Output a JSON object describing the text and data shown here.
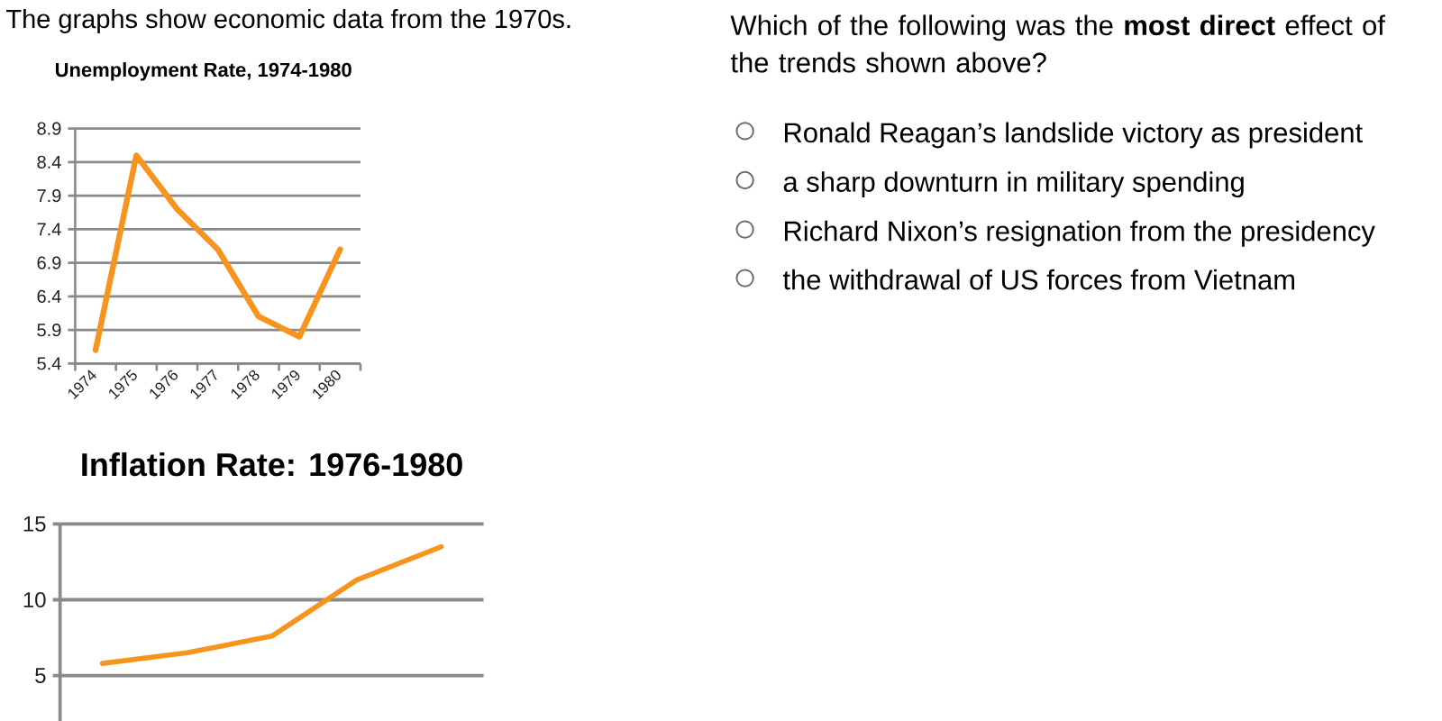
{
  "chart_data": [
    {
      "type": "line",
      "title": "Unemployment Rate, 1974-1980",
      "categories": [
        "1974",
        "1975",
        "1976",
        "1977",
        "1978",
        "1979",
        "1980"
      ],
      "values": [
        5.6,
        8.5,
        7.7,
        7.1,
        6.1,
        5.8,
        7.1
      ],
      "color": "#f7941d",
      "ylim": [
        5.4,
        8.9
      ],
      "yticks": [
        5.4,
        5.9,
        6.4,
        6.9,
        7.4,
        7.9,
        8.4,
        8.9
      ],
      "grid": "y",
      "annotations": [
        "The graphs show economic data from the 1970s."
      ]
    },
    {
      "type": "line",
      "title": "Inflation Rate: 1976-1980",
      "categories": [
        null,
        null,
        null,
        null,
        null
      ],
      "values": [
        5.8,
        6.5,
        7.6,
        11.3,
        13.5
      ],
      "color": "#f7941d",
      "ylim": [
        2,
        15
      ],
      "yticks": [
        5,
        10,
        15
      ],
      "grid": "y",
      "tick_labels": "y"
    },
    {
      "type": "other",
      "title": "Which of the following was the **most direct** effect of the trends shown above?",
      "annotations": [
        "Ronald Reagan’s landslide victory as president",
        "a sharp downturn in military spending",
        "Richard Nixon’s resignation from the presidency",
        "the withdrawal of US forces from Vietnam"
      ]
    }
  ]
}
